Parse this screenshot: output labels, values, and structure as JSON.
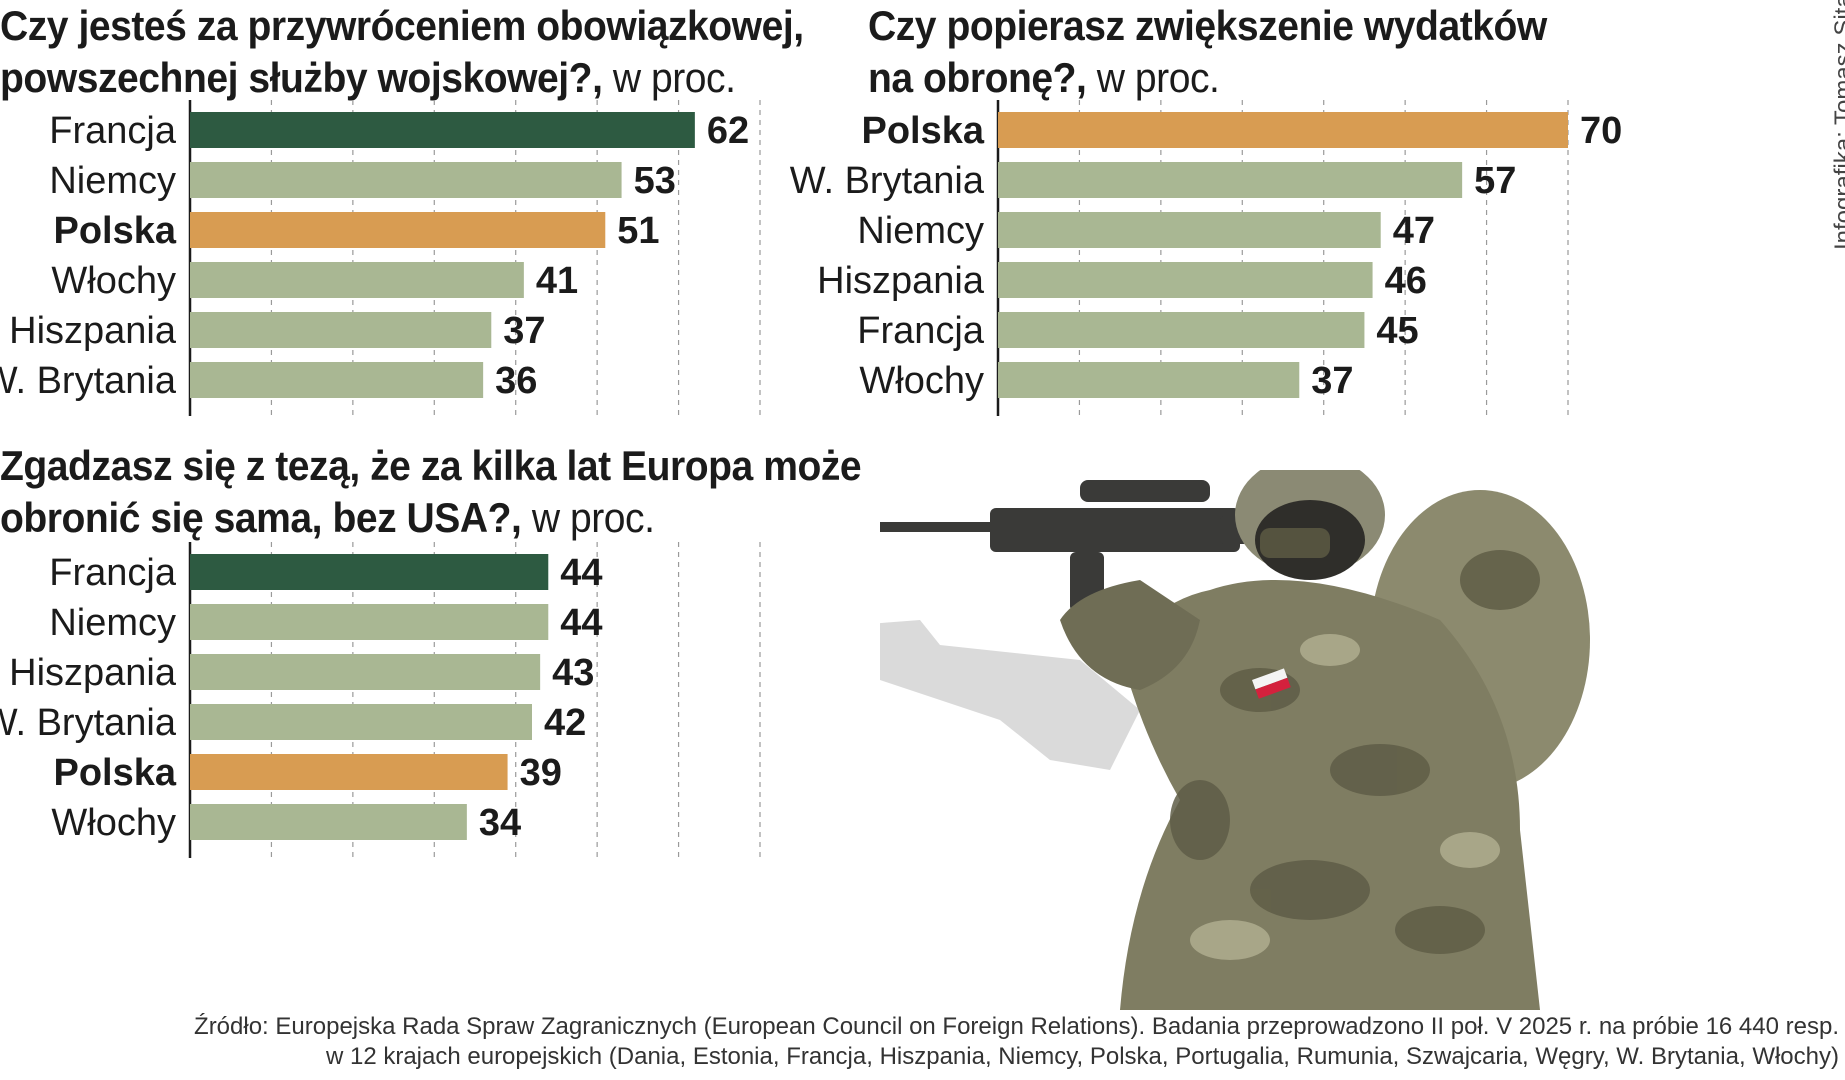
{
  "chart_data": [
    {
      "type": "bar",
      "orientation": "horizontal",
      "title": "Czy jesteś za przywróceniem obowiązkowej,",
      "title_line2": "powszechnej służby wojskowej?,",
      "unit": "w proc.",
      "categories": [
        "Francja",
        "Niemcy",
        "Polska",
        "Włochy",
        "Hiszpania",
        "W. Brytania"
      ],
      "values": [
        62,
        53,
        51,
        41,
        37,
        36
      ],
      "highlight": {
        "Francja": "top",
        "Polska": "poland"
      },
      "xlim": [
        0,
        70
      ],
      "grid": true
    },
    {
      "type": "bar",
      "orientation": "horizontal",
      "title": "Czy popierasz zwiększenie wydatków",
      "title_line2": "na obronę?,",
      "unit": "w proc.",
      "categories": [
        "Polska",
        "W. Brytania",
        "Niemcy",
        "Hiszpania",
        "Francja",
        "Włochy"
      ],
      "values": [
        70,
        57,
        47,
        46,
        45,
        37
      ],
      "highlight": {
        "Polska": "poland"
      },
      "xlim": [
        0,
        70
      ],
      "grid": true
    },
    {
      "type": "bar",
      "orientation": "horizontal",
      "title": "Zgadzasz się z tezą, że za kilka lat Europa może",
      "title_line2": "obronić się sama, bez USA?,",
      "unit": "w proc.",
      "categories": [
        "Francja",
        "Niemcy",
        "Hiszpania",
        "W. Brytania",
        "Polska",
        "Włochy"
      ],
      "values": [
        44,
        44,
        43,
        42,
        39,
        34
      ],
      "highlight": {
        "Francja": "top",
        "Polska": "poland"
      },
      "xlim": [
        0,
        70
      ],
      "grid": true
    }
  ],
  "colors": {
    "top": "#2d5a41",
    "poland": "#d89c52",
    "other": "#a9b793"
  },
  "credit": "Infografika: Tomasz Sitarski",
  "source": {
    "line1": "Źródło: Europejska Rada Spraw Zagranicznych (European Council on Foreign Relations). Badania przeprowadzono II poł. V 2025 r. na próbie 16 440 resp.",
    "line2": "w 12 krajach europejskich (Dania, Estonia, Francja, Hiszpania, Niemcy, Polska, Portugalia, Rumunia,  Szwajcaria, Węgry, W. Brytania, Włochy)"
  }
}
